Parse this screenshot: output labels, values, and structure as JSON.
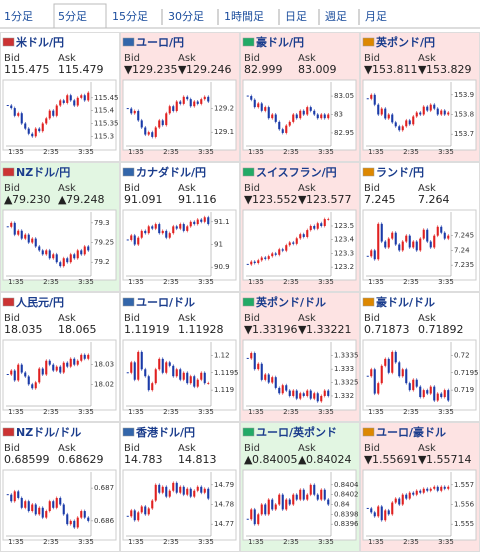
{
  "tabs": [
    "1分足",
    "5分足",
    "15分足",
    "30分足",
    "1時間足",
    "日足",
    "週足",
    "月足"
  ],
  "selected_tab": 1,
  "labels": {
    "bid": "Bid",
    "ask": "Ask"
  },
  "xticks": [
    "1:35",
    "2:35",
    "3:35"
  ],
  "tiles": [
    {
      "name": "米ドル/円",
      "tone": "flat",
      "bid": "115.475",
      "ask": "115.479",
      "yticks": [
        115.45,
        115.4,
        115.35,
        115.3
      ],
      "ylim": [
        115.27,
        115.5
      ],
      "closes": [
        115.42,
        115.41,
        115.38,
        115.39,
        115.35,
        115.33,
        115.31,
        115.3,
        115.33,
        115.32,
        115.35,
        115.37,
        115.4,
        115.38,
        115.42,
        115.44,
        115.43,
        115.46,
        115.44,
        115.42,
        115.45,
        115.46,
        115.44,
        115.47
      ]
    },
    {
      "name": "ユーロ/円",
      "tone": "down",
      "mark": "▼",
      "bid": "129.235",
      "ask": "129.246",
      "yticks": [
        129.2,
        129.1
      ],
      "ylim": [
        129.05,
        129.3
      ],
      "closes": [
        129.2,
        129.18,
        129.19,
        129.15,
        129.12,
        129.09,
        129.1,
        129.08,
        129.12,
        129.15,
        129.13,
        129.18,
        129.21,
        129.19,
        129.23,
        129.22,
        129.25,
        129.24,
        129.21,
        129.23,
        129.22,
        129.24,
        129.25,
        129.23
      ]
    },
    {
      "name": "豪ドル/円",
      "tone": "down",
      "bid": "82.999",
      "ask": "83.009",
      "yticks": [
        83.05,
        83,
        82.95
      ],
      "ylim": [
        82.92,
        83.08
      ],
      "closes": [
        83.05,
        83.04,
        83.02,
        83.03,
        83.01,
        83.02,
        82.99,
        83.0,
        82.98,
        82.96,
        82.95,
        82.97,
        82.98,
        83.0,
        82.99,
        83.01,
        83.0,
        83.02,
        83.01,
        83.0,
        82.99,
        83.0,
        82.99,
        83.0
      ]
    },
    {
      "name": "英ポンド/円",
      "tone": "down",
      "mark": "▼",
      "bid": "153.811",
      "ask": "153.829",
      "yticks": [
        153.9,
        153.8,
        153.7
      ],
      "ylim": [
        153.65,
        153.95
      ],
      "closes": [
        153.88,
        153.9,
        153.85,
        153.8,
        153.83,
        153.78,
        153.8,
        153.76,
        153.74,
        153.72,
        153.74,
        153.77,
        153.75,
        153.79,
        153.81,
        153.8,
        153.84,
        153.82,
        153.85,
        153.83,
        153.8,
        153.82,
        153.8,
        153.81
      ]
    },
    {
      "name": "NZドル/円",
      "tone": "up",
      "mark": "▲",
      "bid": "79.230",
      "ask": "79.248",
      "yticks": [
        79.3,
        79.25,
        79.2
      ],
      "ylim": [
        79.17,
        79.32
      ],
      "closes": [
        79.29,
        79.3,
        79.27,
        79.28,
        79.26,
        79.27,
        79.25,
        79.26,
        79.24,
        79.23,
        79.22,
        79.23,
        79.21,
        79.22,
        79.2,
        79.19,
        79.21,
        79.2,
        79.22,
        79.21,
        79.23,
        79.22,
        79.24,
        79.23
      ]
    },
    {
      "name": "カナダドル/円",
      "tone": "flat",
      "bid": "91.091",
      "ask": "91.116",
      "yticks": [
        91.1,
        91,
        90.9
      ],
      "ylim": [
        90.87,
        91.13
      ],
      "closes": [
        91.02,
        91.04,
        91.0,
        91.03,
        91.06,
        91.05,
        91.08,
        91.07,
        91.09,
        91.05,
        91.06,
        91.03,
        91.05,
        91.08,
        91.07,
        91.09,
        91.06,
        91.08,
        91.1,
        91.09,
        91.11,
        91.1,
        91.12,
        91.09
      ]
    },
    {
      "name": "スイスフラン/円",
      "tone": "down",
      "mark": "▼",
      "bid": "123.552",
      "ask": "123.577",
      "yticks": [
        123.5,
        123.4,
        123.3,
        123.2
      ],
      "ylim": [
        123.15,
        123.58
      ],
      "closes": [
        123.22,
        123.24,
        123.23,
        123.25,
        123.27,
        123.26,
        123.28,
        123.3,
        123.29,
        123.33,
        123.32,
        123.36,
        123.38,
        123.37,
        123.41,
        123.44,
        123.42,
        123.47,
        123.5,
        123.48,
        123.52,
        123.5,
        123.55,
        123.55
      ]
    },
    {
      "name": "ランド/円",
      "tone": "flat",
      "bid": "7.245",
      "ask": "7.264",
      "yticks": [
        7.245,
        7.24,
        7.235
      ],
      "ylim": [
        7.232,
        7.252
      ],
      "closes": [
        7.238,
        7.24,
        7.237,
        7.249,
        7.243,
        7.241,
        7.244,
        7.246,
        7.242,
        7.24,
        7.243,
        7.245,
        7.241,
        7.243,
        7.24,
        7.244,
        7.247,
        7.243,
        7.241,
        7.245,
        7.248,
        7.246,
        7.244,
        7.245
      ]
    },
    {
      "name": "人民元/円",
      "tone": "flat",
      "bid": "18.035",
      "ask": "18.065",
      "yticks": [
        18.03,
        18.02
      ],
      "ylim": [
        18.01,
        18.04
      ],
      "closes": [
        18.025,
        18.027,
        18.022,
        18.03,
        18.026,
        18.024,
        18.02,
        18.018,
        18.021,
        18.028,
        18.025,
        18.032,
        18.03,
        18.027,
        18.029,
        18.026,
        18.031,
        18.029,
        18.033,
        18.03,
        18.032,
        18.035,
        18.033,
        18.035
      ]
    },
    {
      "name": "ユーロ/ドル",
      "tone": "flat",
      "bid": "1.11919",
      "ask": "1.11928",
      "yticks": [
        1.12,
        1.1195,
        1.119
      ],
      "ylim": [
        1.1186,
        1.1203
      ],
      "closes": [
        1.1195,
        1.1198,
        1.1193,
        1.1201,
        1.1196,
        1.1194,
        1.119,
        1.1192,
        1.1196,
        1.1199,
        1.1195,
        1.1198,
        1.1197,
        1.1194,
        1.1196,
        1.1193,
        1.1195,
        1.1192,
        1.1194,
        1.1191,
        1.1193,
        1.1195,
        1.1192,
        1.1192
      ]
    },
    {
      "name": "英ポンド/ドル",
      "tone": "down",
      "mark": "▼",
      "bid": "1.33196",
      "ask": "1.33221",
      "yticks": [
        1.3335,
        1.333,
        1.3325,
        1.332
      ],
      "ylim": [
        1.3317,
        1.3339
      ],
      "closes": [
        1.3334,
        1.3336,
        1.333,
        1.3332,
        1.3326,
        1.3328,
        1.3325,
        1.3327,
        1.3323,
        1.3321,
        1.3324,
        1.3322,
        1.332,
        1.3322,
        1.3319,
        1.3321,
        1.332,
        1.3322,
        1.3319,
        1.3321,
        1.3318,
        1.332,
        1.3322,
        1.332
      ]
    },
    {
      "name": "豪ドル/ドル",
      "tone": "flat",
      "bid": "0.71873",
      "ask": "0.71892",
      "yticks": [
        0.72,
        0.7195,
        0.719
      ],
      "ylim": [
        0.7186,
        0.7203
      ],
      "closes": [
        0.7194,
        0.7196,
        0.7189,
        0.7192,
        0.7197,
        0.7199,
        0.7195,
        0.7201,
        0.7198,
        0.7194,
        0.7196,
        0.7192,
        0.719,
        0.7193,
        0.7191,
        0.7188,
        0.719,
        0.7189,
        0.7191,
        0.7187,
        0.7189,
        0.7188,
        0.719,
        0.7187
      ]
    },
    {
      "name": "NZドル/ドル",
      "tone": "flat",
      "bid": "0.68599",
      "ask": "0.68629",
      "yticks": [
        0.687,
        0.686
      ],
      "ylim": [
        0.6856,
        0.6874
      ],
      "closes": [
        0.6868,
        0.6866,
        0.6869,
        0.6867,
        0.6864,
        0.6866,
        0.6863,
        0.6865,
        0.6862,
        0.6864,
        0.6861,
        0.6863,
        0.6866,
        0.6864,
        0.6867,
        0.6865,
        0.6862,
        0.6859,
        0.686,
        0.6858,
        0.6861,
        0.6863,
        0.6861,
        0.686
      ]
    },
    {
      "name": "香港ドル/円",
      "tone": "flat",
      "bid": "14.783",
      "ask": "14.813",
      "yticks": [
        14.79,
        14.78,
        14.77
      ],
      "ylim": [
        14.765,
        14.795
      ],
      "closes": [
        14.774,
        14.777,
        14.772,
        14.776,
        14.779,
        14.775,
        14.778,
        14.782,
        14.79,
        14.786,
        14.789,
        14.784,
        14.787,
        14.791,
        14.786,
        14.789,
        14.785,
        14.788,
        14.784,
        14.787,
        14.789,
        14.786,
        14.788,
        14.783
      ]
    },
    {
      "name": "ユーロ/英ポンド",
      "tone": "up",
      "mark": "▲",
      "bid": "0.84005",
      "ask": "0.84024",
      "yticks": [
        0.8404,
        0.8402,
        0.84,
        0.8398,
        0.8396
      ],
      "ylim": [
        0.8394,
        0.8406
      ],
      "closes": [
        0.8397,
        0.8399,
        0.8396,
        0.8398,
        0.84,
        0.8398,
        0.8401,
        0.8399,
        0.84,
        0.8402,
        0.8399,
        0.8401,
        0.84,
        0.8402,
        0.8401,
        0.8403,
        0.8401,
        0.8402,
        0.8404,
        0.8402,
        0.8401,
        0.8403,
        0.8401,
        0.84
      ]
    },
    {
      "name": "ユーロ/豪ドル",
      "tone": "down",
      "mark": "▼",
      "bid": "1.55691",
      "ask": "1.55714",
      "yticks": [
        1.557,
        1.556,
        1.555
      ],
      "ylim": [
        1.5545,
        1.5575
      ],
      "closes": [
        1.5558,
        1.5556,
        1.5554,
        1.5559,
        1.5552,
        1.5557,
        1.5555,
        1.5561,
        1.5563,
        1.556,
        1.5565,
        1.5563,
        1.5566,
        1.5565,
        1.5567,
        1.5566,
        1.5568,
        1.5567,
        1.5568,
        1.5569,
        1.5567,
        1.5569,
        1.5568,
        1.5569
      ]
    }
  ]
}
